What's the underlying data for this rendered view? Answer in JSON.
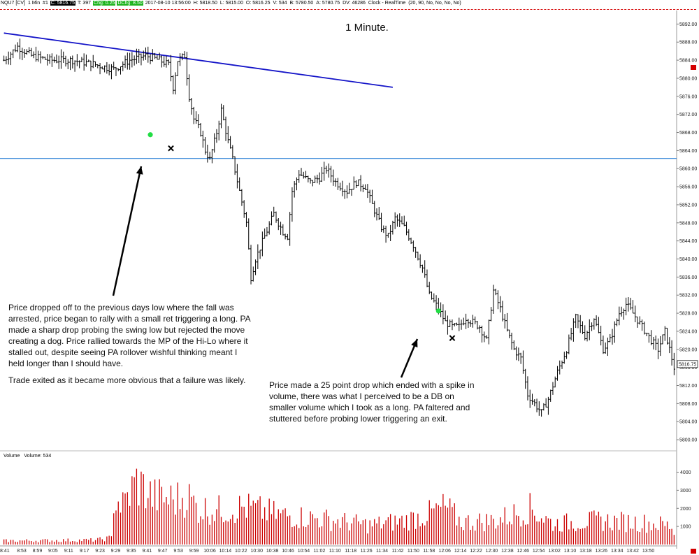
{
  "header": {
    "symbol": "NQU7 [CV]",
    "interval": "1 Min",
    "number": "#1",
    "close": "C: 5816.75",
    "ticks": "T: 397",
    "change": "Chg: 0.25",
    "dchange": "DChg: 8.50",
    "datetime": "2017-08-10 13:56:00",
    "high": "H: 5818.50",
    "low": "L: 5815.00",
    "open": "O: 5816.25",
    "volume": "V: 534",
    "bid": "B: 5780.50",
    "ask": "A: 5780.75",
    "dv": "DV: 46286",
    "clock": "Clock - RealTime",
    "params": "(20, 90, No, No, No, No)"
  },
  "chart_title": "1 Minute.",
  "last_price_tag": "5816.75",
  "volume_panel": {
    "title": "Volume",
    "label": "Volume: 534"
  },
  "annotations": {
    "long_trade_1": "Price dropped off to the previous days low where the fall was arrested, price began to rally with a small ret triggering a long. PA made a sharp drop probing the swing low but rejected the move creating a dog.  Price rallied towards the MP of the Hi-Lo where it stalled out, despite seeing PA rollover wishful thinking meant I held longer than I should have.",
    "long_trade_1_exit": "Trade exited as it became more obvious that a failure was likely.",
    "long_trade_2": "Price made a 25 point drop which ended with a spike in volume, there was what I perceived to be a DB on smaller volume which I took as a long.  PA faltered and stuttered before probing lower triggering an exit."
  },
  "colors": {
    "price_bars": "#000000",
    "trendline": "#1414c8",
    "support_line": "#2a7fd4",
    "entry_marker": "#22dd44",
    "exit_marker": "#000000",
    "volume_bars": "#cc0000",
    "header_highlight": "#1db31d"
  },
  "chart_data": [
    {
      "type": "ohlc",
      "title": "1 Minute.",
      "x_axis_labels": [
        "8:41",
        "8:53",
        "8:59",
        "9:05",
        "9:11",
        "9:17",
        "9:23",
        "9:29",
        "9:35",
        "9:41",
        "9:47",
        "9:53",
        "9:59",
        "10:06",
        "10:14",
        "10:22",
        "10:30",
        "10:38",
        "10:46",
        "10:54",
        "11:02",
        "11:10",
        "11:18",
        "11:26",
        "11:34",
        "11:42",
        "11:50",
        "11:58",
        "12:06",
        "12:14",
        "12:22",
        "12:30",
        "12:38",
        "12:46",
        "12:54",
        "13:02",
        "13:10",
        "13:18",
        "13:26",
        "13:34",
        "13:42",
        "13:50"
      ],
      "y_axis_labels": [
        "5892.00",
        "5888.00",
        "5884.00",
        "5880.00",
        "5876.00",
        "5872.00",
        "5868.00",
        "5864.00",
        "5860.00",
        "5856.00",
        "5852.00",
        "5848.00",
        "5844.00",
        "5840.00",
        "5836.00",
        "5832.00",
        "5828.00",
        "5824.00",
        "5820.00",
        "5816.00",
        "5812.00",
        "5808.00",
        "5804.00",
        "5800.00"
      ],
      "ylim": [
        5798,
        5895
      ],
      "close_path": [
        [
          0,
          5884
        ],
        [
          6,
          5887
        ],
        [
          12,
          5885
        ],
        [
          20,
          5884
        ],
        [
          30,
          5884
        ],
        [
          40,
          5883
        ],
        [
          48,
          5882
        ],
        [
          55,
          5884
        ],
        [
          62,
          5885
        ],
        [
          68,
          5884
        ],
        [
          72,
          5883
        ],
        [
          74,
          5878
        ],
        [
          76,
          5884
        ],
        [
          79,
          5885
        ],
        [
          81,
          5876
        ],
        [
          83,
          5871
        ],
        [
          86,
          5868
        ],
        [
          88,
          5864
        ],
        [
          90,
          5862
        ],
        [
          93,
          5868
        ],
        [
          95,
          5873
        ],
        [
          98,
          5866
        ],
        [
          100,
          5862
        ],
        [
          103,
          5855
        ],
        [
          106,
          5848
        ],
        [
          108,
          5836
        ],
        [
          110,
          5840
        ],
        [
          114,
          5845
        ],
        [
          118,
          5850
        ],
        [
          122,
          5846
        ],
        [
          124,
          5845
        ],
        [
          126,
          5855
        ],
        [
          129,
          5859
        ],
        [
          134,
          5857
        ],
        [
          138,
          5858
        ],
        [
          141,
          5860
        ],
        [
          145,
          5857
        ],
        [
          150,
          5855
        ],
        [
          154,
          5857
        ],
        [
          158,
          5856
        ],
        [
          161,
          5852
        ],
        [
          165,
          5847
        ],
        [
          168,
          5845
        ],
        [
          171,
          5849
        ],
        [
          175,
          5847
        ],
        [
          179,
          5843
        ],
        [
          183,
          5838
        ],
        [
          186,
          5832
        ],
        [
          190,
          5829
        ],
        [
          193,
          5826
        ],
        [
          196,
          5825
        ],
        [
          199,
          5825
        ],
        [
          202,
          5827
        ],
        [
          205,
          5826
        ],
        [
          208,
          5825
        ],
        [
          211,
          5822
        ],
        [
          214,
          5833
        ],
        [
          217,
          5829
        ],
        [
          220,
          5824
        ],
        [
          223,
          5820
        ],
        [
          226,
          5818
        ],
        [
          229,
          5810
        ],
        [
          232,
          5808
        ],
        [
          235,
          5806
        ],
        [
          238,
          5809
        ],
        [
          242,
          5815
        ],
        [
          246,
          5820
        ],
        [
          250,
          5827
        ],
        [
          254,
          5823
        ],
        [
          258,
          5827
        ],
        [
          262,
          5820
        ],
        [
          265,
          5822
        ],
        [
          269,
          5828
        ],
        [
          272,
          5830
        ],
        [
          275,
          5828
        ],
        [
          279,
          5825
        ],
        [
          283,
          5822
        ],
        [
          286,
          5820
        ],
        [
          289,
          5824
        ],
        [
          293,
          5816
        ]
      ],
      "bars_total": 294,
      "support_level": 5862.25,
      "trendline": {
        "from": {
          "bar": 0,
          "price": 5890
        },
        "to": {
          "bar": 170,
          "price": 5878
        }
      },
      "entries": [
        {
          "bar": 64,
          "price": 5867.5
        },
        {
          "bar": 190,
          "price": 5828.5
        }
      ],
      "exits": [
        {
          "bar": 73,
          "price": 5864.5
        },
        {
          "bar": 196,
          "price": 5822.5
        }
      ]
    },
    {
      "type": "bar",
      "title": "Volume",
      "y_axis_labels": [
        "4000",
        "3000",
        "2000",
        "1000"
      ],
      "ylim": [
        0,
        4600
      ],
      "volume_path": [
        [
          0,
          250
        ],
        [
          40,
          300
        ],
        [
          47,
          450
        ],
        [
          48,
          3100
        ],
        [
          52,
          2600
        ],
        [
          55,
          3400
        ],
        [
          58,
          4200
        ],
        [
          65,
          3200
        ],
        [
          75,
          3000
        ],
        [
          80,
          3300
        ],
        [
          85,
          2400
        ],
        [
          95,
          2300
        ],
        [
          105,
          2500
        ],
        [
          120,
          2000
        ],
        [
          140,
          1700
        ],
        [
          160,
          1300
        ],
        [
          175,
          1600
        ],
        [
          185,
          2000
        ],
        [
          193,
          2500
        ],
        [
          200,
          1500
        ],
        [
          215,
          1600
        ],
        [
          230,
          2400
        ],
        [
          240,
          1400
        ],
        [
          260,
          1600
        ],
        [
          275,
          1500
        ],
        [
          285,
          1400
        ],
        [
          293,
          1200
        ]
      ],
      "last_volume": 534
    }
  ]
}
